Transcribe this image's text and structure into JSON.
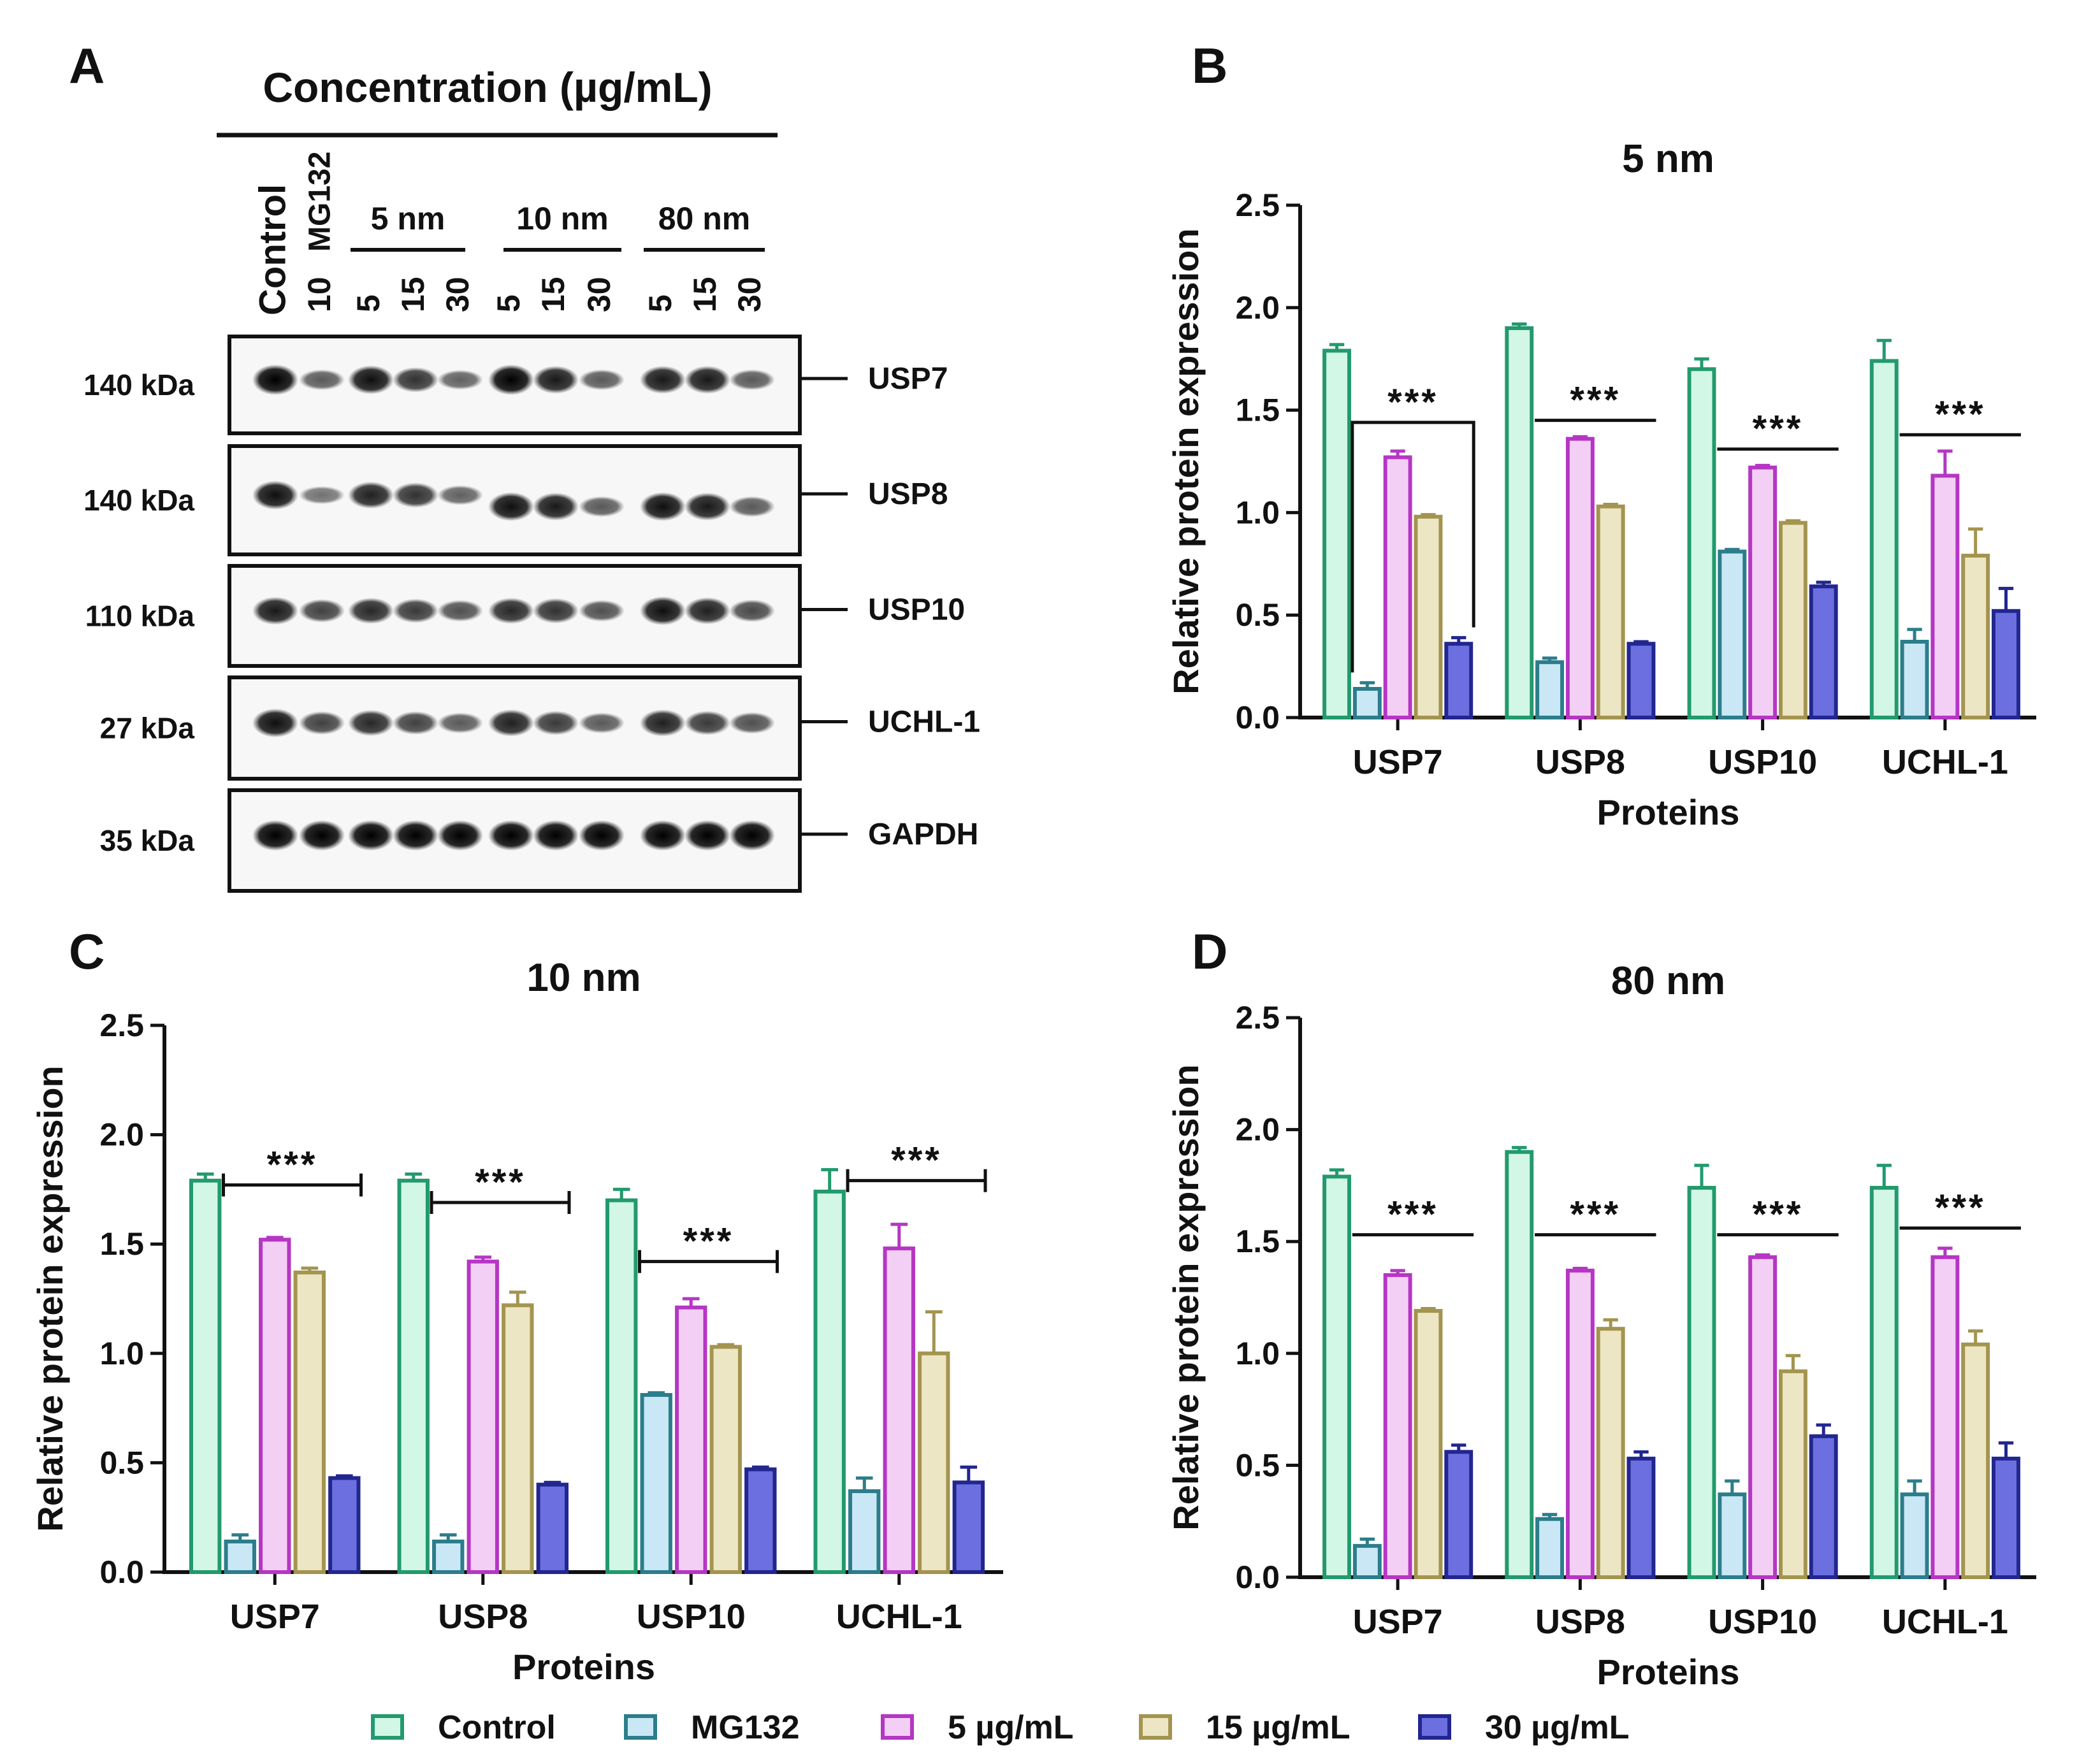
{
  "colors": {
    "series_fill": [
      "#d2f7e6",
      "#cae7f5",
      "#f4cff5",
      "#ede6c4",
      "#6b6fe0"
    ],
    "series_edge": [
      "#229a6e",
      "#2c7d8b",
      "#b536c4",
      "#a3944f",
      "#22268f"
    ],
    "band": "#111111",
    "blot_bg": "#f7f7f7",
    "axis": "#111111"
  },
  "panel_a": {
    "letter": "A",
    "header": "Concentration (µg/mL)",
    "lane_labels": [
      "Control",
      "10",
      "5",
      "15",
      "30",
      "5",
      "15",
      "30",
      "5",
      "15",
      "30"
    ],
    "mg132_label": "MG132",
    "groups": [
      "5 nm",
      "10 nm",
      "80 nm"
    ],
    "blots": [
      {
        "kda": "140 kDa",
        "protein": "USP7",
        "intensity": [
          1.0,
          0.45,
          0.9,
          0.7,
          0.4,
          1.0,
          0.85,
          0.45,
          0.85,
          0.85,
          0.45
        ]
      },
      {
        "kda": "140 kDa",
        "protein": "USP8",
        "intensity": [
          0.9,
          0.3,
          0.8,
          0.7,
          0.4,
          0.9,
          0.85,
          0.45,
          0.9,
          0.85,
          0.45
        ]
      },
      {
        "kda": "110 kDa",
        "protein": "USP10",
        "intensity": [
          0.85,
          0.6,
          0.75,
          0.65,
          0.5,
          0.75,
          0.7,
          0.5,
          0.9,
          0.8,
          0.55
        ]
      },
      {
        "kda": "27 kDa",
        "protein": "UCHL-1",
        "intensity": [
          0.9,
          0.6,
          0.75,
          0.6,
          0.45,
          0.8,
          0.65,
          0.45,
          0.8,
          0.65,
          0.5
        ]
      },
      {
        "kda": "35 kDa",
        "protein": "GAPDH",
        "intensity": [
          1.0,
          1.0,
          1.0,
          1.0,
          1.0,
          1.0,
          1.0,
          1.0,
          1.0,
          1.0,
          1.0
        ]
      }
    ]
  },
  "legend": {
    "items": [
      "Control",
      "MG132",
      "5 µg/mL",
      "15 µg/mL",
      "30 µg/mL"
    ]
  },
  "chart_data": [
    {
      "panel": "B",
      "type": "bar",
      "title": "5 nm",
      "xlabel": "Proteins",
      "ylabel": "Relative protein expression",
      "ylim": [
        0,
        2.5
      ],
      "yticks": [
        "0.0",
        "0.5",
        "1.0",
        "1.5",
        "2.0",
        "2.5"
      ],
      "categories": [
        "USP7",
        "USP8",
        "USP10",
        "UCHL-1"
      ],
      "series": [
        {
          "name": "Control",
          "values": [
            1.79,
            1.9,
            1.7,
            1.74
          ],
          "errors": [
            0.03,
            0.02,
            0.05,
            0.1
          ]
        },
        {
          "name": "MG132",
          "values": [
            0.14,
            0.27,
            0.81,
            0.37
          ],
          "errors": [
            0.03,
            0.02,
            0.01,
            0.06
          ]
        },
        {
          "name": "5 µg/mL",
          "values": [
            1.27,
            1.36,
            1.22,
            1.18
          ],
          "errors": [
            0.03,
            0.01,
            0.01,
            0.12
          ]
        },
        {
          "name": "15 µg/mL",
          "values": [
            0.98,
            1.03,
            0.95,
            0.79
          ],
          "errors": [
            0.01,
            0.01,
            0.01,
            0.13
          ]
        },
        {
          "name": "30 µg/mL",
          "values": [
            0.36,
            0.36,
            0.64,
            0.52
          ],
          "errors": [
            0.03,
            0.01,
            0.02,
            0.11
          ]
        }
      ],
      "significance": [
        {
          "category": "USP7",
          "label": "***",
          "y": 1.44,
          "style": "bracket"
        },
        {
          "category": "USP8",
          "label": "***",
          "y": 1.45,
          "style": "line"
        },
        {
          "category": "USP10",
          "label": "***",
          "y": 1.31,
          "style": "line"
        },
        {
          "category": "UCHL-1",
          "label": "***",
          "y": 1.38,
          "style": "line"
        }
      ]
    },
    {
      "panel": "C",
      "type": "bar",
      "title": "10 nm",
      "xlabel": "Proteins",
      "ylabel": "Relative protein expression",
      "ylim": [
        0,
        2.5
      ],
      "yticks": [
        "0.0",
        "0.5",
        "1.0",
        "1.5",
        "2.0",
        "2.5"
      ],
      "categories": [
        "USP7",
        "USP8",
        "USP10",
        "UCHL-1"
      ],
      "series": [
        {
          "name": "Control",
          "values": [
            1.79,
            1.79,
            1.7,
            1.74
          ],
          "errors": [
            0.03,
            0.03,
            0.05,
            0.1
          ]
        },
        {
          "name": "MG132",
          "values": [
            0.14,
            0.14,
            0.81,
            0.37
          ],
          "errors": [
            0.03,
            0.03,
            0.01,
            0.06
          ]
        },
        {
          "name": "5 µg/mL",
          "values": [
            1.52,
            1.42,
            1.21,
            1.48
          ],
          "errors": [
            0.01,
            0.02,
            0.04,
            0.11
          ]
        },
        {
          "name": "15 µg/mL",
          "values": [
            1.37,
            1.22,
            1.03,
            1.0
          ],
          "errors": [
            0.02,
            0.06,
            0.01,
            0.19
          ]
        },
        {
          "name": "30 µg/mL",
          "values": [
            0.43,
            0.4,
            0.47,
            0.41
          ],
          "errors": [
            0.01,
            0.01,
            0.01,
            0.07
          ]
        }
      ],
      "significance": [
        {
          "category": "USP7",
          "label": "***",
          "y": 1.77,
          "style": "capped"
        },
        {
          "category": "USP8",
          "label": "***",
          "y": 1.69,
          "style": "capped"
        },
        {
          "category": "USP10",
          "label": "***",
          "y": 1.42,
          "style": "capped"
        },
        {
          "category": "UCHL-1",
          "label": "***",
          "y": 1.79,
          "style": "capped"
        }
      ]
    },
    {
      "panel": "D",
      "type": "bar",
      "title": "80 nm",
      "xlabel": "Proteins",
      "ylabel": "Relative protein expression",
      "ylim": [
        0,
        2.5
      ],
      "yticks": [
        "0.0",
        "0.5",
        "1.0",
        "1.5",
        "2.0",
        "2.5"
      ],
      "categories": [
        "USP7",
        "USP8",
        "USP10",
        "UCHL-1"
      ],
      "series": [
        {
          "name": "Control",
          "values": [
            1.79,
            1.9,
            1.74,
            1.74
          ],
          "errors": [
            0.03,
            0.02,
            0.1,
            0.1
          ]
        },
        {
          "name": "MG132",
          "values": [
            0.14,
            0.26,
            0.37,
            0.37
          ],
          "errors": [
            0.03,
            0.02,
            0.06,
            0.06
          ]
        },
        {
          "name": "5 µg/mL",
          "values": [
            1.35,
            1.37,
            1.43,
            1.43
          ],
          "errors": [
            0.02,
            0.01,
            0.01,
            0.04
          ]
        },
        {
          "name": "15 µg/mL",
          "values": [
            1.19,
            1.11,
            0.92,
            1.04
          ],
          "errors": [
            0.01,
            0.04,
            0.07,
            0.06
          ]
        },
        {
          "name": "30 µg/mL",
          "values": [
            0.56,
            0.53,
            0.63,
            0.53
          ],
          "errors": [
            0.03,
            0.03,
            0.05,
            0.07
          ]
        }
      ],
      "significance": [
        {
          "category": "USP7",
          "label": "***",
          "y": 1.53,
          "style": "line"
        },
        {
          "category": "USP8",
          "label": "***",
          "y": 1.53,
          "style": "line"
        },
        {
          "category": "USP10",
          "label": "***",
          "y": 1.53,
          "style": "line"
        },
        {
          "category": "UCHL-1",
          "label": "***",
          "y": 1.56,
          "style": "line"
        }
      ]
    }
  ]
}
